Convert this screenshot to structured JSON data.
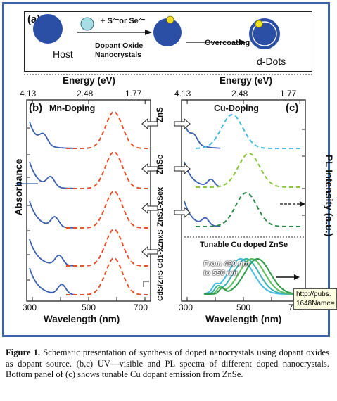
{
  "panel_a": {
    "label": "(a)",
    "host": "Host",
    "reagent": "+ S²⁻or Se²⁻",
    "dopant_line1": "Dopant Oxide",
    "dopant_line2": "Nanocrystals",
    "overcoating": "Overcoating",
    "ddots": "d-Dots"
  },
  "panel_b": {
    "label": "(b)",
    "title": "Mn-Doping",
    "top_axis_title": "Energy (eV)",
    "top_ticks": [
      "4.13",
      "2.48",
      "1.77"
    ],
    "bottom_ticks": [
      "300",
      "500",
      "700"
    ],
    "xlabel": "Wavelength (nm)",
    "ylabel": "Absorbance"
  },
  "panel_c": {
    "label": "(c)",
    "title": "Cu-Doping",
    "top_axis_title": "Energy (eV)",
    "top_ticks": [
      "4.13",
      "2.48",
      "1.77"
    ],
    "bottom_ticks": [
      "300",
      "500",
      "700"
    ],
    "xlabel": "Wavelength (nm)",
    "ylabel": "PL Intensity (a.u.)",
    "tunable_title": "Tunable Cu doped ZnSe",
    "range_line1": "From 490 nm",
    "range_line2": "to 550 nm"
  },
  "materials": [
    "ZnS",
    "ZnSe",
    "ZnS1-xSex",
    "CdS/ZnS Cd1-xZnxS"
  ],
  "caption": {
    "label": "Figure 1.",
    "text": "Schematic presentation of synthesis of doped nanocrystals using dopant oxides as dopant source. (b,c) UV—visible and PL spectra of different doped nanocrystals. Bottom panel of (c) shows tunable Cu dopant emission from ZnSe."
  },
  "tooltip": {
    "line1": "http://pubs.",
    "line2": "1648Name="
  },
  "colors": {
    "frame": "#3b64a8",
    "absorbance": "#3a5fb0",
    "mn_pl": "#e0522a",
    "cu_zns": "#45bce0",
    "cu_znse": "#8cc63e",
    "cu_znsse": "#2e8a4a",
    "dot_blue": "#2c4fa6",
    "dopant_dot": "#f0e020",
    "dopant_oxide": "#a8dde6"
  },
  "chart_data": [
    {
      "type": "line",
      "title": "Mn-Doping",
      "xlabel": "Wavelength (nm)",
      "ylabel": "Absorbance",
      "xlim": [
        280,
        720
      ],
      "xticks": [
        300,
        500,
        700
      ],
      "top_axis": {
        "title": "Energy (eV)",
        "ticks": [
          4.13,
          2.48,
          1.77
        ]
      },
      "series": [
        {
          "absorption_edge_nm": 355,
          "pl_peak_nm": 590
        },
        {
          "absorption_edge_nm": 380,
          "pl_peak_nm": 590
        },
        {
          "absorption_edge_nm": 395,
          "pl_peak_nm": 590
        },
        {
          "absorption_edge_nm": 410,
          "pl_peak_nm": 590
        },
        {
          "absorption_edge_nm": 420,
          "pl_peak_nm": 590
        }
      ]
    },
    {
      "type": "line",
      "title": "Cu-Doping",
      "xlabel": "Wavelength (nm)",
      "ylabel": "PL Intensity (a.u.)",
      "xlim": [
        280,
        720
      ],
      "xticks": [
        300,
        500,
        700
      ],
      "top_axis": {
        "title": "Energy (eV)",
        "ticks": [
          4.13,
          2.48,
          1.77
        ]
      },
      "series": [
        {
          "name": "ZnS",
          "absorption_edge_nm": 340,
          "pl_peak_nm": 460
        },
        {
          "name": "ZnSe",
          "absorption_edge_nm": 400,
          "pl_peak_nm": 520
        },
        {
          "name": "ZnS1-xSex",
          "absorption_edge_nm": 380,
          "pl_peak_nm": 510
        }
      ],
      "tunable": {
        "title": "Tunable Cu doped ZnSe",
        "peaks_nm": [
          490,
          510,
          530,
          550
        ]
      }
    }
  ]
}
